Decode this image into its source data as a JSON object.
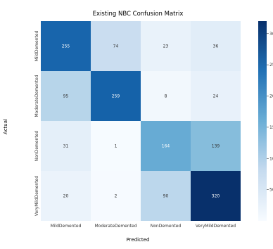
{
  "chart_data": {
    "type": "heatmap",
    "title": "Existing NBC Confusion Matrix",
    "xlabel": "Predicted",
    "ylabel": "Actual",
    "x_categories": [
      "MildDemented",
      "ModerateDemented",
      "NonDemented",
      "VeryMildDemented"
    ],
    "y_categories": [
      "MildDemented",
      "ModerateDemented",
      "NonDemented",
      "VeryMildDemented"
    ],
    "values": [
      [
        255,
        74,
        23,
        36
      ],
      [
        95,
        259,
        8,
        24
      ],
      [
        31,
        1,
        164,
        139
      ],
      [
        20,
        2,
        90,
        320
      ]
    ],
    "colormap": "Blues",
    "vmin": 0,
    "vmax": 320,
    "colorbar": true
  }
}
